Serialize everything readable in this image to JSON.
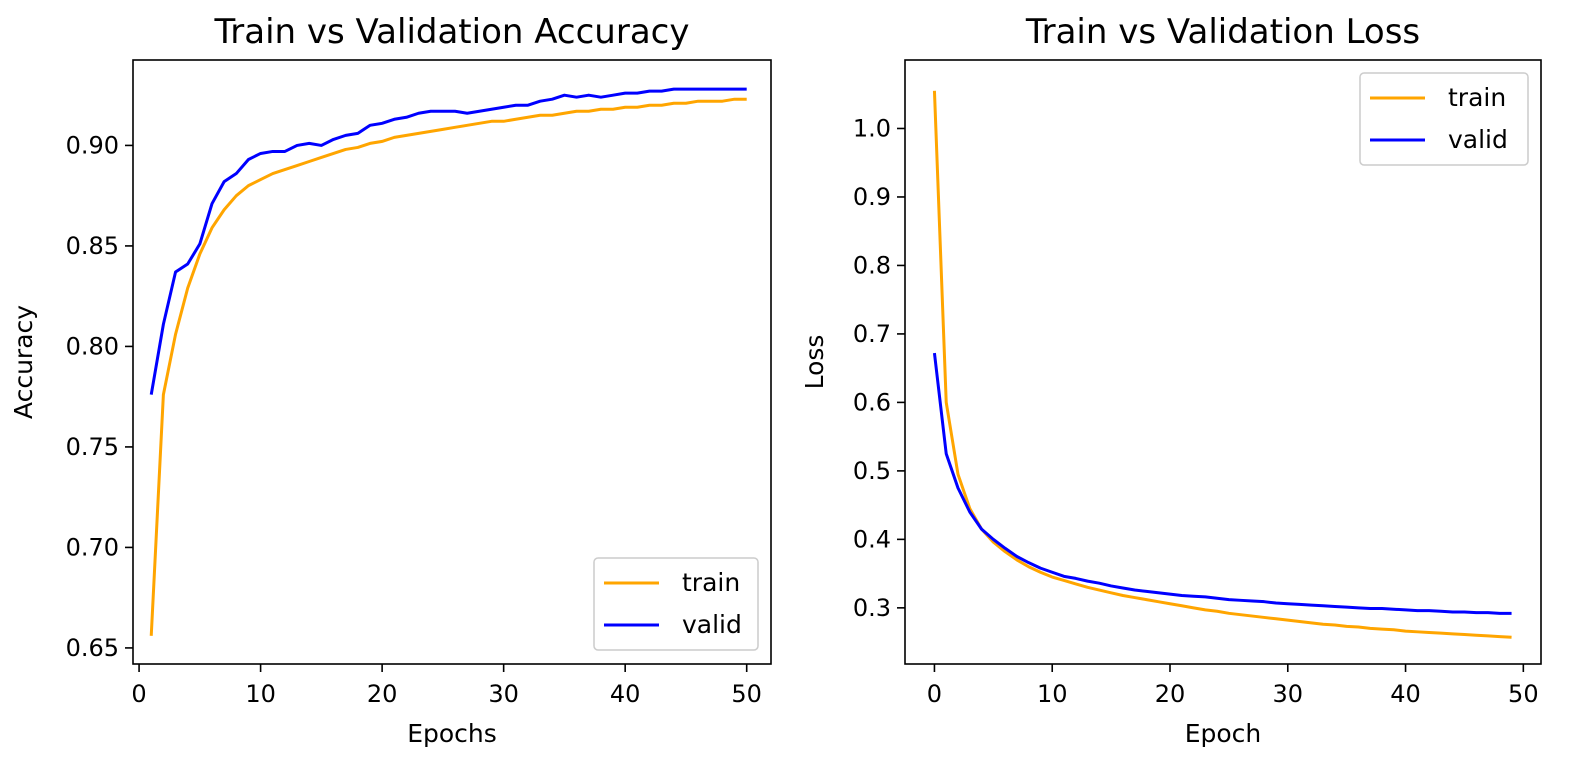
{
  "chart_data": [
    {
      "type": "line",
      "title": "Train vs Validation Accuracy",
      "xlabel": "Epochs",
      "ylabel": "Accuracy",
      "xlim": [
        -0.5,
        52
      ],
      "ylim": [
        0.642,
        0.9425
      ],
      "xticks": [
        0,
        10,
        20,
        30,
        40,
        50
      ],
      "yticks": [
        0.65,
        0.7,
        0.75,
        0.8,
        0.85,
        0.9
      ],
      "ytick_labels": [
        "0.65",
        "0.70",
        "0.75",
        "0.80",
        "0.85",
        "0.90"
      ],
      "grid": false,
      "legend": "lower right",
      "x": [
        1,
        2,
        3,
        4,
        5,
        6,
        7,
        8,
        9,
        10,
        11,
        12,
        13,
        14,
        15,
        16,
        17,
        18,
        19,
        20,
        21,
        22,
        23,
        24,
        25,
        26,
        27,
        28,
        29,
        30,
        31,
        32,
        33,
        34,
        35,
        36,
        37,
        38,
        39,
        40,
        41,
        42,
        43,
        44,
        45,
        46,
        47,
        48,
        49,
        50
      ],
      "series": [
        {
          "name": "train",
          "color": "#FFA500",
          "values": [
            0.656,
            0.776,
            0.806,
            0.829,
            0.846,
            0.859,
            0.868,
            0.875,
            0.88,
            0.883,
            0.886,
            0.888,
            0.89,
            0.892,
            0.894,
            0.896,
            0.898,
            0.899,
            0.901,
            0.902,
            0.904,
            0.905,
            0.906,
            0.907,
            0.908,
            0.909,
            0.91,
            0.911,
            0.912,
            0.912,
            0.913,
            0.914,
            0.915,
            0.915,
            0.916,
            0.917,
            0.917,
            0.918,
            0.918,
            0.919,
            0.919,
            0.92,
            0.92,
            0.921,
            0.921,
            0.922,
            0.922,
            0.922,
            0.923,
            0.923
          ]
        },
        {
          "name": "valid",
          "color": "#0000FF",
          "values": [
            0.776,
            0.811,
            0.837,
            0.841,
            0.851,
            0.871,
            0.882,
            0.886,
            0.893,
            0.896,
            0.897,
            0.897,
            0.9,
            0.901,
            0.9,
            0.903,
            0.905,
            0.906,
            0.91,
            0.911,
            0.913,
            0.914,
            0.916,
            0.917,
            0.917,
            0.917,
            0.916,
            0.917,
            0.918,
            0.919,
            0.92,
            0.92,
            0.922,
            0.923,
            0.925,
            0.924,
            0.925,
            0.924,
            0.925,
            0.926,
            0.926,
            0.927,
            0.927,
            0.928,
            0.928,
            0.928,
            0.928,
            0.928,
            0.928,
            0.928
          ]
        }
      ]
    },
    {
      "type": "line",
      "title": "Train vs Validation Loss",
      "xlabel": "Epoch",
      "ylabel": "Loss",
      "xlim": [
        -2.5,
        51.5
      ],
      "ylim": [
        0.218,
        1.1
      ],
      "xticks": [
        0,
        10,
        20,
        30,
        40,
        50
      ],
      "yticks": [
        0.3,
        0.4,
        0.5,
        0.6,
        0.7,
        0.8,
        0.9,
        1.0
      ],
      "ytick_labels": [
        "0.3",
        "0.4",
        "0.5",
        "0.6",
        "0.7",
        "0.8",
        "0.9",
        "1.0"
      ],
      "grid": false,
      "legend": "upper right",
      "x": [
        0,
        1,
        2,
        3,
        4,
        5,
        6,
        7,
        8,
        9,
        10,
        11,
        12,
        13,
        14,
        15,
        16,
        17,
        18,
        19,
        20,
        21,
        22,
        23,
        24,
        25,
        26,
        27,
        28,
        29,
        30,
        31,
        32,
        33,
        34,
        35,
        36,
        37,
        38,
        39,
        40,
        41,
        42,
        43,
        44,
        45,
        46,
        47,
        48,
        49
      ],
      "series": [
        {
          "name": "train",
          "color": "#FFA500",
          "values": [
            1.055,
            0.6,
            0.495,
            0.445,
            0.415,
            0.396,
            0.382,
            0.37,
            0.36,
            0.352,
            0.345,
            0.34,
            0.335,
            0.33,
            0.326,
            0.322,
            0.318,
            0.315,
            0.312,
            0.309,
            0.306,
            0.303,
            0.3,
            0.297,
            0.295,
            0.292,
            0.29,
            0.288,
            0.286,
            0.284,
            0.282,
            0.28,
            0.278,
            0.276,
            0.275,
            0.273,
            0.272,
            0.27,
            0.269,
            0.268,
            0.266,
            0.265,
            0.264,
            0.263,
            0.262,
            0.261,
            0.26,
            0.259,
            0.258,
            0.257
          ]
        },
        {
          "name": "valid",
          "color": "#0000FF",
          "values": [
            0.672,
            0.525,
            0.475,
            0.44,
            0.415,
            0.4,
            0.387,
            0.375,
            0.366,
            0.358,
            0.352,
            0.346,
            0.343,
            0.339,
            0.336,
            0.332,
            0.329,
            0.326,
            0.324,
            0.322,
            0.32,
            0.318,
            0.317,
            0.316,
            0.314,
            0.312,
            0.311,
            0.31,
            0.309,
            0.307,
            0.306,
            0.305,
            0.304,
            0.303,
            0.302,
            0.301,
            0.3,
            0.299,
            0.299,
            0.298,
            0.297,
            0.296,
            0.296,
            0.295,
            0.294,
            0.294,
            0.293,
            0.293,
            0.292,
            0.292
          ]
        }
      ]
    }
  ]
}
